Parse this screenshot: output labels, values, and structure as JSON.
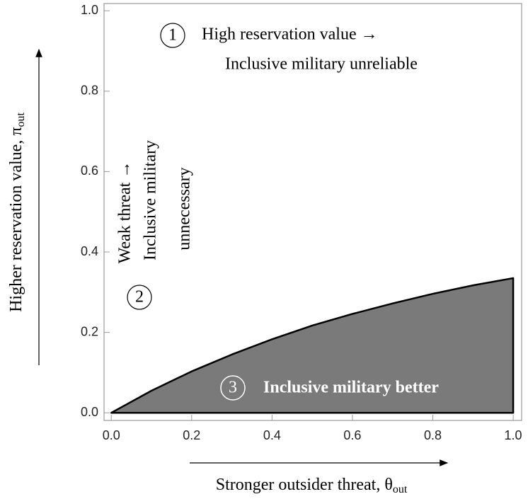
{
  "chart_data": {
    "type": "area",
    "x": [
      0,
      0.1,
      0.2,
      0.3,
      0.4,
      0.5,
      0.6,
      0.7,
      0.8,
      0.9,
      1.0
    ],
    "values": [
      0,
      0.055,
      0.103,
      0.145,
      0.183,
      0.217,
      0.246,
      0.272,
      0.296,
      0.317,
      0.335
    ],
    "color": "#7a7a7a",
    "xlim": [
      -0.018,
      1.021
    ],
    "ylim": [
      -0.019,
      1.018
    ],
    "xticks": [
      {
        "value": 0,
        "label": "0.0"
      },
      0.2,
      0.4,
      0.6,
      0.8,
      {
        "value": 1,
        "label": "1.0"
      }
    ],
    "yticks": [
      {
        "value": 0,
        "label": "0.0"
      },
      0.2,
      0.4,
      0.6,
      0.8,
      {
        "value": 1,
        "label": "1.0"
      }
    ],
    "x_label": "Stronger outsider threat, θ",
    "x_label_subscript": "out",
    "y_label": "Higher reservation value, π",
    "y_label_subscript": "out",
    "annotations": {
      "region1": {
        "number": "1",
        "lines": [
          "High reservation value →",
          "Inclusive military unreliable"
        ]
      },
      "region2": {
        "number": "2",
        "lines": [
          "Weak threat →",
          "Inclusive military",
          "unnecessary"
        ]
      },
      "region3": {
        "number": "3",
        "lines": [
          "Inclusive military better"
        ]
      }
    }
  }
}
